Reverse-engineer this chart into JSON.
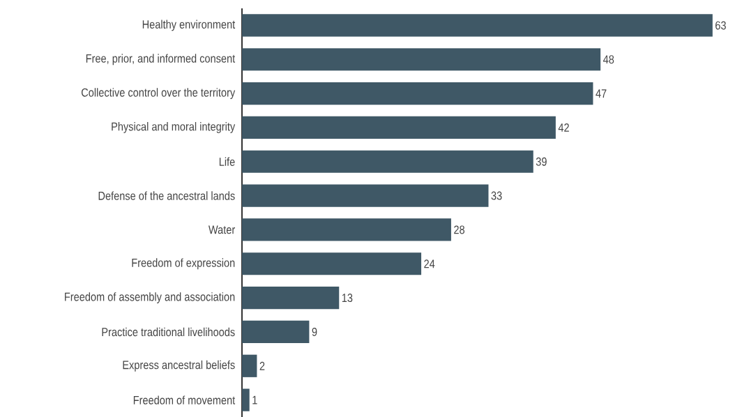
{
  "chart_data": {
    "type": "bar",
    "orientation": "horizontal",
    "categories": [
      "Healthy environment",
      "Free, prior, and informed consent",
      "Collective control over the territory",
      "Physical and moral integrity",
      "Life",
      "Defense of the ancestral lands",
      "Water",
      "Freedom of expression",
      "Freedom of assembly and association",
      "Practice traditional livelihoods",
      "Express ancestral beliefs",
      "Freedom of movement"
    ],
    "values": [
      63,
      48,
      47,
      42,
      39,
      33,
      28,
      24,
      13,
      9,
      2,
      1
    ],
    "color": "#3f5866",
    "data_labels": true
  }
}
